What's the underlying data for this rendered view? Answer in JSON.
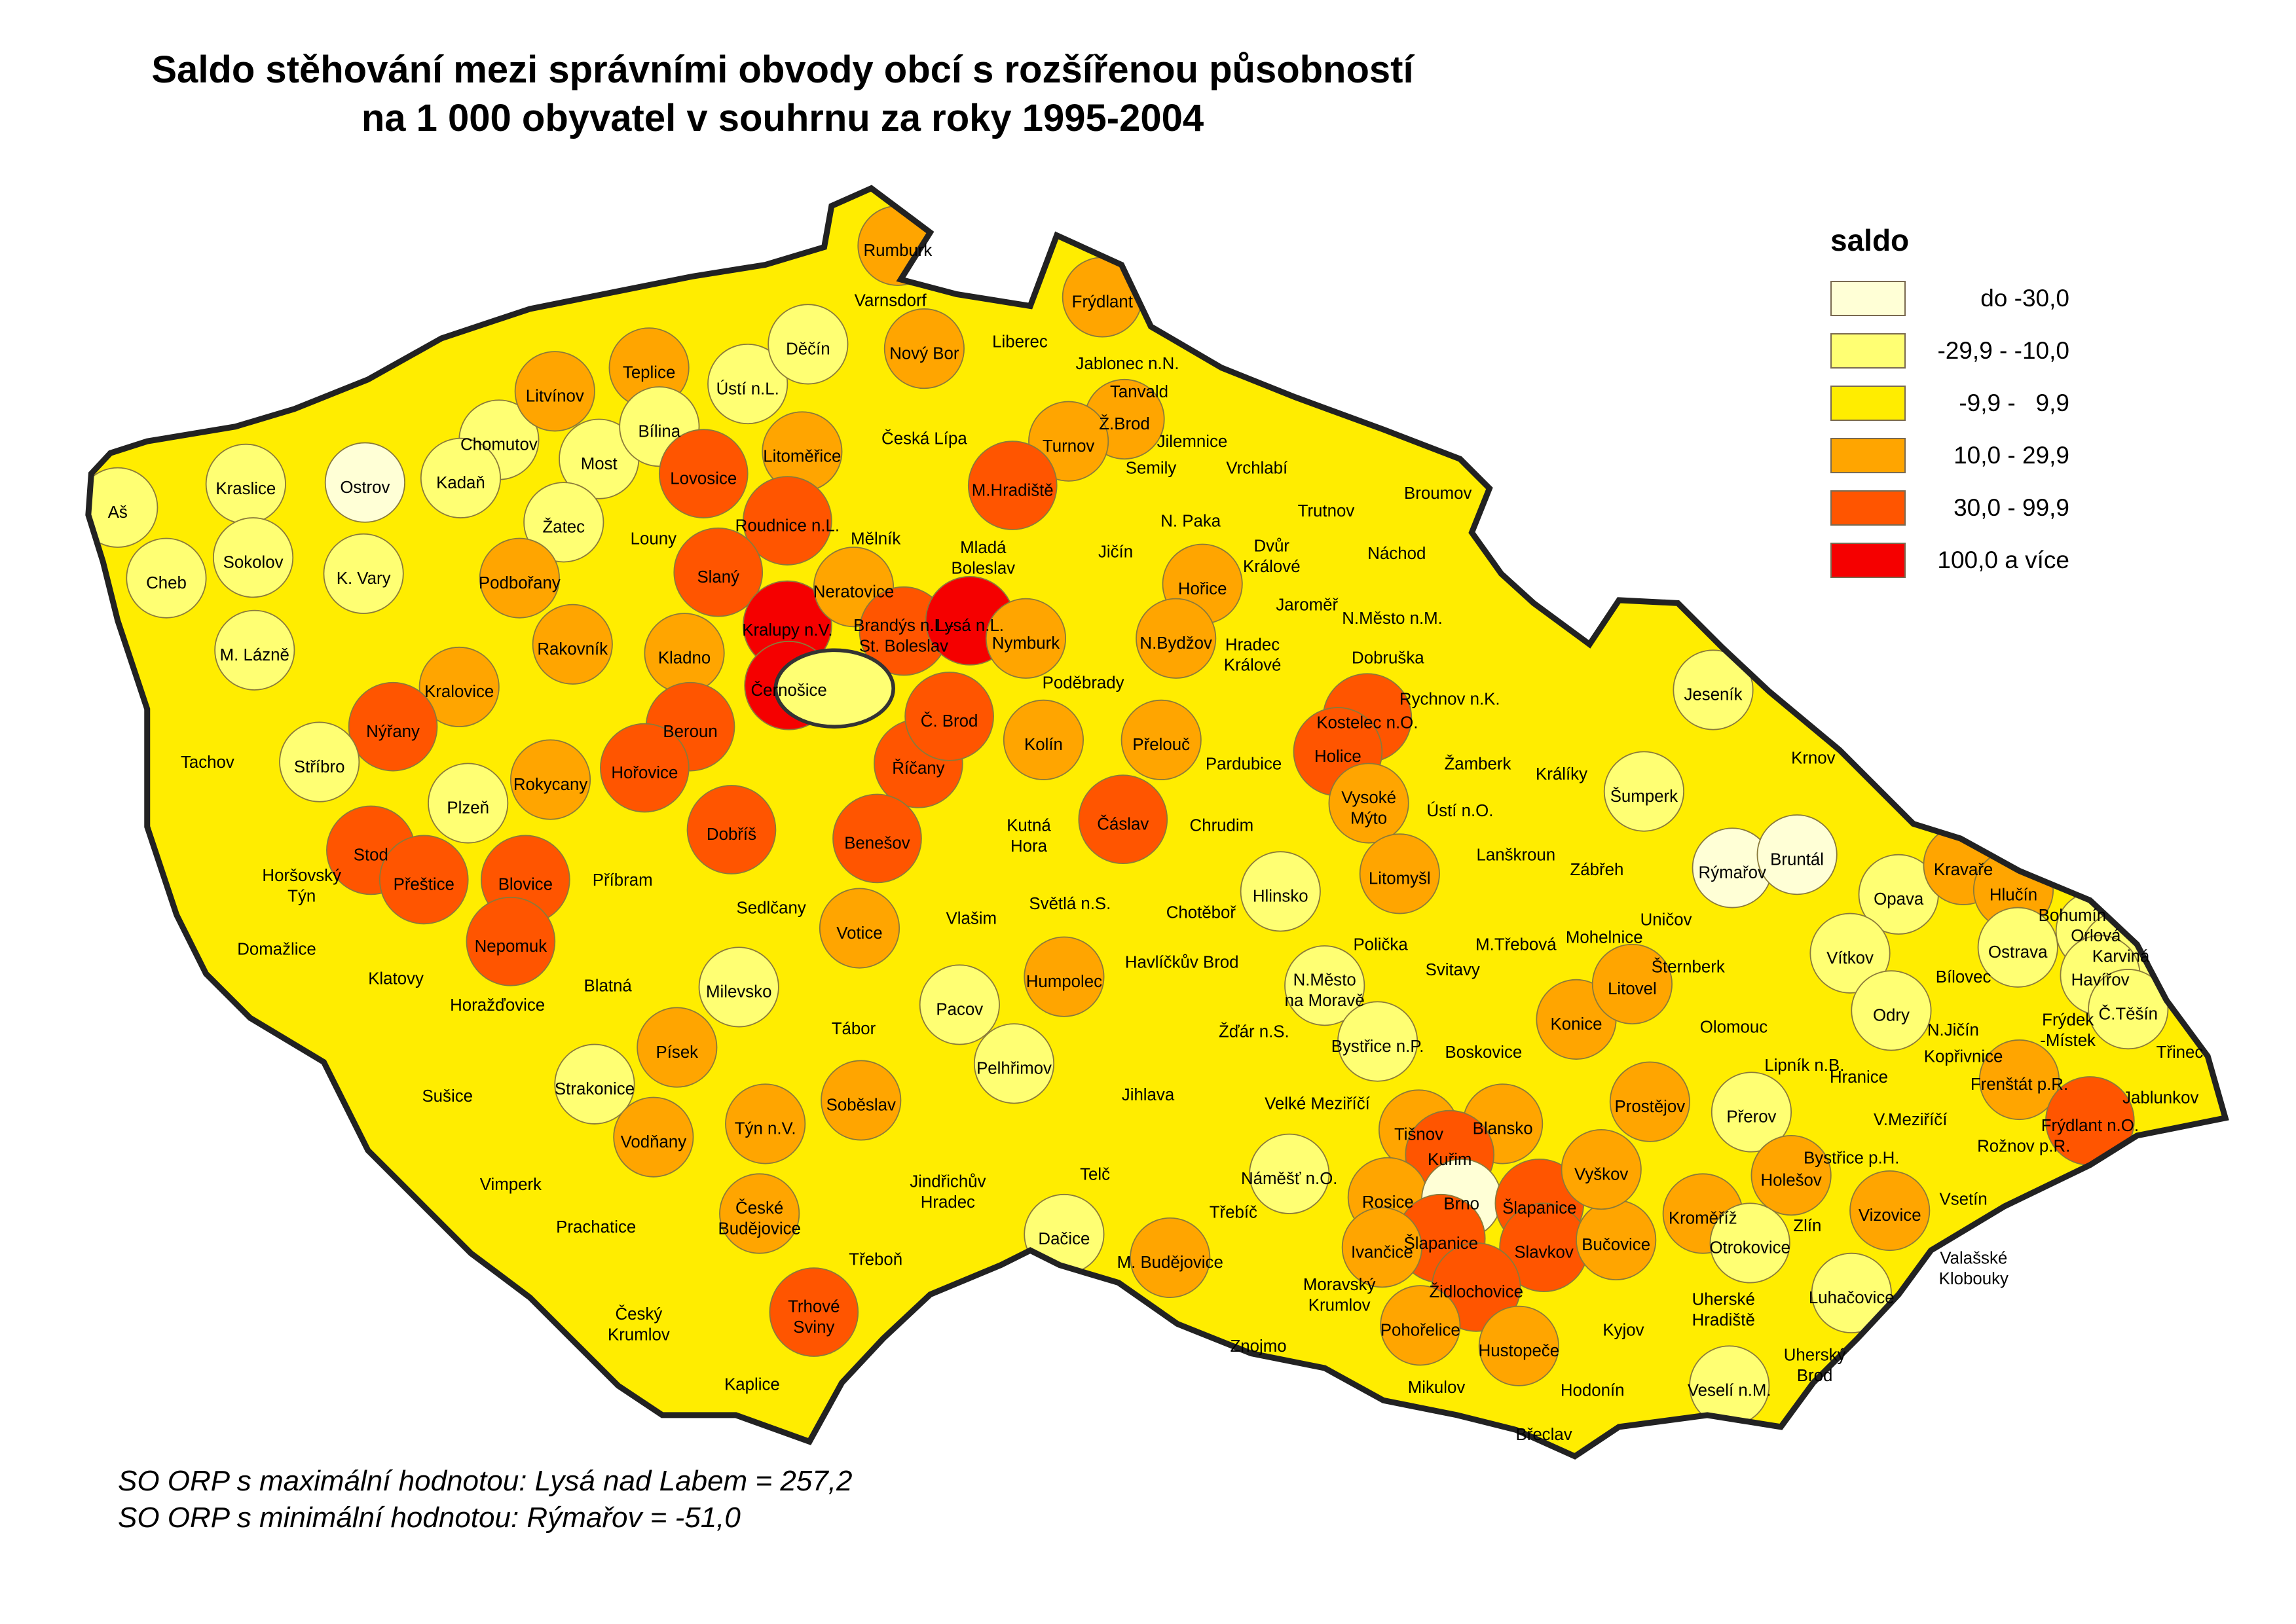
{
  "title": [
    "Saldo stěhování mezi správními obvody obcí s rozšířenou působností",
    "na 1 000 obyvatel v souhrnu za roky 1995-2004"
  ],
  "legend": {
    "title": "saldo",
    "classes": [
      {
        "label": "do -30,0",
        "color": "#FFFFD6"
      },
      {
        "label": "-29,9 - -10,0",
        "color": "#FFFF73"
      },
      {
        "label": "-9,9 -   9,9",
        "color": "#FFED00"
      },
      {
        "label": "10,0 - 29,9",
        "color": "#FFA500"
      },
      {
        "label": "30,0 - 99,9",
        "color": "#FF5500"
      },
      {
        "label": "100,0 a více",
        "color": "#F50000"
      }
    ]
  },
  "footer": [
    "SO ORP s maximální hodnotou: Lysá nad Labem = 257,2",
    "SO ORP s minimální hodnotou: Rýmařov = -51,0"
  ],
  "regions": [
    {
      "label": [
        "Aš"
      ],
      "class": 1
    },
    {
      "label": [
        "Kraslice"
      ],
      "class": 1
    },
    {
      "label": [
        "Ostrov"
      ],
      "class": 0
    },
    {
      "label": [
        "Cheb"
      ],
      "class": 1
    },
    {
      "label": [
        "Sokolov"
      ],
      "class": 1
    },
    {
      "label": [
        "K. Vary"
      ],
      "class": 1
    },
    {
      "label": [
        "M. Lázně"
      ],
      "class": 1
    },
    {
      "label": [
        "Chomutov"
      ],
      "class": 1
    },
    {
      "label": [
        "Kadaň"
      ],
      "class": 1
    },
    {
      "label": [
        "Most"
      ],
      "class": 1
    },
    {
      "label": [
        "Žatec"
      ],
      "class": 1
    },
    {
      "label": [
        "Litvínov"
      ],
      "class": 3
    },
    {
      "label": [
        "Teplice"
      ],
      "class": 3
    },
    {
      "label": [
        "Bílina"
      ],
      "class": 1
    },
    {
      "label": [
        "Ústí n.L."
      ],
      "class": 1
    },
    {
      "label": [
        "Děčín"
      ],
      "class": 1
    },
    {
      "label": [
        "Lovosice"
      ],
      "class": 4
    },
    {
      "label": [
        "Litoměřice"
      ],
      "class": 3
    },
    {
      "label": [
        "Roudnice n.L."
      ],
      "class": 4
    },
    {
      "label": [
        "Louny"
      ],
      "class": 2
    },
    {
      "label": [
        "Podbořany"
      ],
      "class": 3
    },
    {
      "label": [
        "Slaný"
      ],
      "class": 4
    },
    {
      "label": [
        "Rakovník"
      ],
      "class": 3
    },
    {
      "label": [
        "Kladno"
      ],
      "class": 3
    },
    {
      "label": [
        "Kralupy n.V."
      ],
      "class": 5
    },
    {
      "label": [
        "Černošice"
      ],
      "class": 5
    },
    {
      "label": [
        "Mělník"
      ],
      "class": 2
    },
    {
      "label": [
        "Neratovice"
      ],
      "class": 3
    },
    {
      "label": [
        "Brandýs n.L.-",
        "St. Boleslav"
      ],
      "class": 4
    },
    {
      "label": [
        "Lysá n.L."
      ],
      "class": 5
    },
    {
      "label": [
        "Kralovice"
      ],
      "class": 3
    },
    {
      "label": [
        "Nýřany"
      ],
      "class": 4
    },
    {
      "label": [
        "Tachov"
      ],
      "class": 2
    },
    {
      "label": [
        "Stříbro"
      ],
      "class": 1
    },
    {
      "label": [
        "Plzeň"
      ],
      "class": 1
    },
    {
      "label": [
        "Rokycany"
      ],
      "class": 3
    },
    {
      "label": [
        "Beroun"
      ],
      "class": 4
    },
    {
      "label": [
        "Hořovice"
      ],
      "class": 4
    },
    {
      "label": [
        "Dobříš"
      ],
      "class": 4
    },
    {
      "label": [
        "Říčany"
      ],
      "class": 4
    },
    {
      "label": [
        "Č. Brod"
      ],
      "class": 4
    },
    {
      "label": [
        "Benešov"
      ],
      "class": 4
    },
    {
      "label": [
        "Stod"
      ],
      "class": 4
    },
    {
      "label": [
        "Přeštice"
      ],
      "class": 4
    },
    {
      "label": [
        "Blovice"
      ],
      "class": 4
    },
    {
      "label": [
        "Horšovský",
        "Týn"
      ],
      "class": 2
    },
    {
      "label": [
        "Domažlice"
      ],
      "class": 2
    },
    {
      "label": [
        "Nepomuk"
      ],
      "class": 4
    },
    {
      "label": [
        "Klatovy"
      ],
      "class": 2
    },
    {
      "label": [
        "Horažďovice"
      ],
      "class": 2
    },
    {
      "label": [
        "Sušice"
      ],
      "class": 2
    },
    {
      "label": [
        "Příbram"
      ],
      "class": 2
    },
    {
      "label": [
        "Sedlčany"
      ],
      "class": 2
    },
    {
      "label": [
        "Votice"
      ],
      "class": 3
    },
    {
      "label": [
        "Vlašim"
      ],
      "class": 2
    },
    {
      "label": [
        "Blatná"
      ],
      "class": 2
    },
    {
      "label": [
        "Milevsko"
      ],
      "class": 1
    },
    {
      "label": [
        "Tábor"
      ],
      "class": 2
    },
    {
      "label": [
        "Písek"
      ],
      "class": 3
    },
    {
      "label": [
        "Strakonice"
      ],
      "class": 1
    },
    {
      "label": [
        "Vodňany"
      ],
      "class": 3
    },
    {
      "label": [
        "Týn n.V."
      ],
      "class": 3
    },
    {
      "label": [
        "Soběslav"
      ],
      "class": 3
    },
    {
      "label": [
        "Vimperk"
      ],
      "class": 2
    },
    {
      "label": [
        "Prachatice"
      ],
      "class": 2
    },
    {
      "label": [
        "České",
        "Budějovice"
      ],
      "class": 3
    },
    {
      "label": [
        "Jindřichův",
        "Hradec"
      ],
      "class": 2
    },
    {
      "label": [
        "Třeboň"
      ],
      "class": 2
    },
    {
      "label": [
        "Trhové",
        "Sviny"
      ],
      "class": 4
    },
    {
      "label": [
        "Český",
        "Krumlov"
      ],
      "class": 2
    },
    {
      "label": [
        "Kaplice"
      ],
      "class": 2
    },
    {
      "label": [
        "Rumburk"
      ],
      "class": 3
    },
    {
      "label": [
        "Varnsdorf"
      ],
      "class": 2
    },
    {
      "label": [
        "Nový Bor"
      ],
      "class": 3
    },
    {
      "label": [
        "Liberec"
      ],
      "class": 2
    },
    {
      "label": [
        "Frýdlant"
      ],
      "class": 3
    },
    {
      "label": [
        "Jablonec n.N."
      ],
      "class": 2
    },
    {
      "label": [
        "Tanvald"
      ],
      "class": 2
    },
    {
      "label": [
        "Česká Lípa"
      ],
      "class": 2
    },
    {
      "label": [
        "Ž.Brod"
      ],
      "class": 3
    },
    {
      "label": [
        "Turnov"
      ],
      "class": 3
    },
    {
      "label": [
        "Jilemnice"
      ],
      "class": 2
    },
    {
      "label": [
        "Semily"
      ],
      "class": 2
    },
    {
      "label": [
        "Vrchlabí"
      ],
      "class": 2
    },
    {
      "label": [
        "M.Hradiště"
      ],
      "class": 4
    },
    {
      "label": [
        "N. Paka"
      ],
      "class": 2
    },
    {
      "label": [
        "Trutnov"
      ],
      "class": 2
    },
    {
      "label": [
        "Broumov"
      ],
      "class": 2
    },
    {
      "label": [
        "Mladá",
        "Boleslav"
      ],
      "class": 2
    },
    {
      "label": [
        "Jičín"
      ],
      "class": 2
    },
    {
      "label": [
        "Dvůr",
        "Králové"
      ],
      "class": 2
    },
    {
      "label": [
        "Náchod"
      ],
      "class": 2
    },
    {
      "label": [
        "Hořice"
      ],
      "class": 3
    },
    {
      "label": [
        "Jaroměř"
      ],
      "class": 2
    },
    {
      "label": [
        "N.Město n.M."
      ],
      "class": 2
    },
    {
      "label": [
        "Nymburk"
      ],
      "class": 3
    },
    {
      "label": [
        "N.Bydžov"
      ],
      "class": 3
    },
    {
      "label": [
        "Hradec",
        "Králové"
      ],
      "class": 2
    },
    {
      "label": [
        "Dobruška"
      ],
      "class": 2
    },
    {
      "label": [
        "Poděbrady"
      ],
      "class": 2
    },
    {
      "label": [
        "Rychnov n.K."
      ],
      "class": 2
    },
    {
      "label": [
        "Kolín"
      ],
      "class": 3
    },
    {
      "label": [
        "Kostelec n.O."
      ],
      "class": 4
    },
    {
      "label": [
        "Přelouč"
      ],
      "class": 3
    },
    {
      "label": [
        "Pardubice"
      ],
      "class": 2
    },
    {
      "label": [
        "Holice"
      ],
      "class": 4
    },
    {
      "label": [
        "Žamberk"
      ],
      "class": 2
    },
    {
      "label": [
        "Králíky"
      ],
      "class": 2
    },
    {
      "label": [
        "Kutná",
        "Hora"
      ],
      "class": 2
    },
    {
      "label": [
        "Čáslav"
      ],
      "class": 4
    },
    {
      "label": [
        "Chrudim"
      ],
      "class": 2
    },
    {
      "label": [
        "Vysoké",
        "Mýto"
      ],
      "class": 3
    },
    {
      "label": [
        "Ústí n.O."
      ],
      "class": 2
    },
    {
      "label": [
        "Lanškroun"
      ],
      "class": 2
    },
    {
      "label": [
        "Litomyšl"
      ],
      "class": 3
    },
    {
      "label": [
        "Světlá n.S."
      ],
      "class": 2
    },
    {
      "label": [
        "Chotěboř"
      ],
      "class": 2
    },
    {
      "label": [
        "Hlinsko"
      ],
      "class": 1
    },
    {
      "label": [
        "Polička"
      ],
      "class": 2
    },
    {
      "label": [
        "Svitavy"
      ],
      "class": 2
    },
    {
      "label": [
        "M.Třebová"
      ],
      "class": 2
    },
    {
      "label": [
        "Humpolec"
      ],
      "class": 3
    },
    {
      "label": [
        "Havlíčkův Brod"
      ],
      "class": 2
    },
    {
      "label": [
        "N.Město",
        "na Moravě"
      ],
      "class": 1
    },
    {
      "label": [
        "Pacov"
      ],
      "class": 1
    },
    {
      "label": [
        "Pelhřimov"
      ],
      "class": 1
    },
    {
      "label": [
        "Žďár n.S."
      ],
      "class": 2
    },
    {
      "label": [
        "Bystřice n.P."
      ],
      "class": 1
    },
    {
      "label": [
        "Boskovice"
      ],
      "class": 2
    },
    {
      "label": [
        "Jihlava"
      ],
      "class": 2
    },
    {
      "label": [
        "Velké Meziříčí"
      ],
      "class": 2
    },
    {
      "label": [
        "Tišnov"
      ],
      "class": 3
    },
    {
      "label": [
        "Blansko"
      ],
      "class": 3
    },
    {
      "label": [
        "Kuřim"
      ],
      "class": 4
    },
    {
      "label": [
        "Telč"
      ],
      "class": 2
    },
    {
      "label": [
        "Náměšť n.O."
      ],
      "class": 1
    },
    {
      "label": [
        "Třebíč"
      ],
      "class": 2
    },
    {
      "label": [
        "Rosice"
      ],
      "class": 3
    },
    {
      "label": [
        "Brno"
      ],
      "class": 0
    },
    {
      "label": [
        "Šlapanice"
      ],
      "class": 4
    },
    {
      "label": [
        "Šlapanice"
      ],
      "class": 4
    },
    {
      "label": [
        "Slavkov"
      ],
      "class": 4
    },
    {
      "label": [
        "Ivančice"
      ],
      "class": 3
    },
    {
      "label": [
        "Dačice"
      ],
      "class": 1
    },
    {
      "label": [
        "M. Budějovice"
      ],
      "class": 3
    },
    {
      "label": [
        "Moravský",
        "Krumlov"
      ],
      "class": 2
    },
    {
      "label": [
        "Židlochovice"
      ],
      "class": 4
    },
    {
      "label": [
        "Pohořelice"
      ],
      "class": 3
    },
    {
      "label": [
        "Znojmo"
      ],
      "class": 2
    },
    {
      "label": [
        "Hustopeče"
      ],
      "class": 3
    },
    {
      "label": [
        "Mikulov"
      ],
      "class": 2
    },
    {
      "label": [
        "Hodonín"
      ],
      "class": 2
    },
    {
      "label": [
        "Břeclav"
      ],
      "class": 2
    },
    {
      "label": [
        "Kyjov"
      ],
      "class": 2
    },
    {
      "label": [
        "Bučovice"
      ],
      "class": 3
    },
    {
      "label": [
        "Vyškov"
      ],
      "class": 3
    },
    {
      "label": [
        "Prostějov"
      ],
      "class": 3
    },
    {
      "label": [
        "Konice"
      ],
      "class": 3
    },
    {
      "label": [
        "Litovel"
      ],
      "class": 3
    },
    {
      "label": [
        "Mohelnice"
      ],
      "class": 2
    },
    {
      "label": [
        "Šternberk"
      ],
      "class": 2
    },
    {
      "label": [
        "Uničov"
      ],
      "class": 2
    },
    {
      "label": [
        "Zábřeh"
      ],
      "class": 2
    },
    {
      "label": [
        "Šumperk"
      ],
      "class": 1
    },
    {
      "label": [
        "Jeseník"
      ],
      "class": 1
    },
    {
      "label": [
        "Rýmařov"
      ],
      "class": 0
    },
    {
      "label": [
        "Bruntál"
      ],
      "class": 0
    },
    {
      "label": [
        "Krnov"
      ],
      "class": 2
    },
    {
      "label": [
        "Opava"
      ],
      "class": 1
    },
    {
      "label": [
        "Vítkov"
      ],
      "class": 1
    },
    {
      "label": [
        "Kravaře"
      ],
      "class": 3
    },
    {
      "label": [
        "Hlučín"
      ],
      "class": 3
    },
    {
      "label": [
        "Bohumín"
      ],
      "class": 2
    },
    {
      "label": [
        "Orlová"
      ],
      "class": 1
    },
    {
      "label": [
        "Karviná"
      ],
      "class": 1
    },
    {
      "label": [
        "Ostrava"
      ],
      "class": 1
    },
    {
      "label": [
        "Havířov"
      ],
      "class": 1
    },
    {
      "label": [
        "Bílovec"
      ],
      "class": 2
    },
    {
      "label": [
        "Odry"
      ],
      "class": 1
    },
    {
      "label": [
        "Olomouc"
      ],
      "class": 2
    },
    {
      "label": [
        "N.Jičín"
      ],
      "class": 2
    },
    {
      "label": [
        "Kopřivnice"
      ],
      "class": 2
    },
    {
      "label": [
        "Frýdek",
        "-Místek"
      ],
      "class": 2
    },
    {
      "label": [
        "Č.Těšín"
      ],
      "class": 1
    },
    {
      "label": [
        "Třinec"
      ],
      "class": 2
    },
    {
      "label": [
        "Lipník n.B."
      ],
      "class": 2
    },
    {
      "label": [
        "Hranice"
      ],
      "class": 2
    },
    {
      "label": [
        "Frenštát p.R."
      ],
      "class": 3
    },
    {
      "label": [
        "Jablunkov"
      ],
      "class": 2
    },
    {
      "label": [
        "Frýdlant n.O."
      ],
      "class": 4
    },
    {
      "label": [
        "Přerov"
      ],
      "class": 1
    },
    {
      "label": [
        "V.Meziříčí"
      ],
      "class": 2
    },
    {
      "label": [
        "Rožnov p.R."
      ],
      "class": 2
    },
    {
      "label": [
        "Bystřice p.H."
      ],
      "class": 2
    },
    {
      "label": [
        "Holešov"
      ],
      "class": 3
    },
    {
      "label": [
        "Kroměříž"
      ],
      "class": 3
    },
    {
      "label": [
        "Vsetín"
      ],
      "class": 2
    },
    {
      "label": [
        "Zlín"
      ],
      "class": 2
    },
    {
      "label": [
        "Vizovice"
      ],
      "class": 3
    },
    {
      "label": [
        "Otrokovice"
      ],
      "class": 1
    },
    {
      "label": [
        "Valašské",
        "Klobouky"
      ],
      "class": 2
    },
    {
      "label": [
        "Uherské",
        "Hradiště"
      ],
      "class": 2
    },
    {
      "label": [
        "Luhačovice"
      ],
      "class": 1
    },
    {
      "label": [
        "Uherský",
        "Brod"
      ],
      "class": 2
    },
    {
      "label": [
        "Veselí n.M."
      ],
      "class": 1
    }
  ],
  "prague_class": 1
}
